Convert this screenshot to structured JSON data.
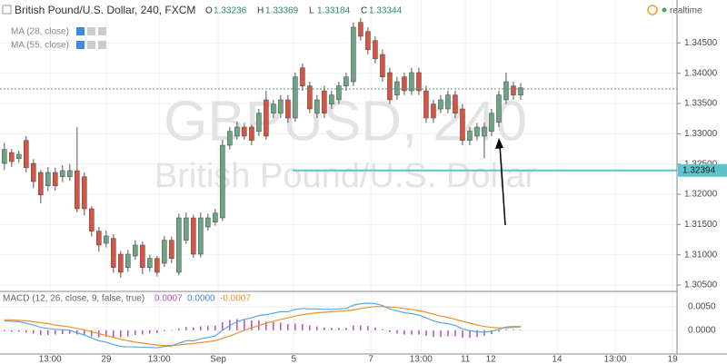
{
  "chart_data": [
    {
      "type": "candlestick",
      "title": "British Pound/U.S. Dollar, 240, FXCM",
      "ohlc_legend": [
        {
          "label": "O",
          "value": 1.33236
        },
        {
          "label": "H",
          "value": 1.33369
        },
        {
          "label": "L",
          "value": 1.33184
        },
        {
          "label": "C",
          "value": 1.33344
        }
      ],
      "indicators": [
        "MA (28, close)",
        "MA (55, close)"
      ],
      "status": "realtime",
      "watermark": [
        "GBPUSD, 240",
        "British Pound/U.S. Dollar"
      ],
      "up_color": "#6ba583",
      "down_color": "#d75442",
      "open": [
        1.3251,
        1.3269,
        1.3259,
        1.3289,
        1.3251,
        1.3236,
        1.3214,
        1.3236,
        1.3229,
        1.3229,
        1.3239,
        1.3229,
        1.3176,
        1.3139,
        1.3119,
        1.3127,
        1.3101,
        1.3079,
        1.3098,
        1.3116,
        1.3079,
        1.3094,
        1.3086,
        1.3124,
        1.3071,
        1.3124,
        1.3161,
        1.3101,
        1.3146,
        1.3154,
        1.3161,
        1.3281,
        1.3296,
        1.3311,
        1.3311,
        1.3304,
        1.3356,
        1.3334,
        1.3334,
        1.3356,
        1.3326,
        1.3409,
        1.3379,
        1.3334,
        1.3371,
        1.3349,
        1.3356,
        1.3379,
        1.3386,
        1.3484,
        1.3469,
        1.3454,
        1.3431,
        1.3401,
        1.3364,
        1.3394,
        1.3371,
        1.3401,
        1.3371,
        1.3349,
        1.3341,
        1.3341,
        1.3364,
        1.3341,
        1.3289,
        1.3296,
        1.3296,
        1.3304,
        1.3319,
        1.3356,
        1.3379,
        1.3364
      ],
      "high": [
        1.3285,
        1.3275,
        1.3272,
        1.3296,
        1.3258,
        1.324,
        1.3245,
        1.3244,
        1.3248,
        1.325,
        1.3311,
        1.3236,
        1.318,
        1.3146,
        1.314,
        1.3134,
        1.3106,
        1.3108,
        1.3124,
        1.3122,
        1.31,
        1.3098,
        1.3131,
        1.313,
        1.3168,
        1.317,
        1.3166,
        1.317,
        1.3168,
        1.3176,
        1.329,
        1.3311,
        1.332,
        1.3318,
        1.3315,
        1.3341,
        1.3371,
        1.3356,
        1.3364,
        1.3364,
        1.3401,
        1.3416,
        1.3386,
        1.3364,
        1.3379,
        1.3371,
        1.3386,
        1.3401,
        1.3484,
        1.3491,
        1.3476,
        1.3461,
        1.3439,
        1.3409,
        1.3394,
        1.3401,
        1.3409,
        1.3409,
        1.3379,
        1.3356,
        1.3364,
        1.3371,
        1.3371,
        1.3349,
        1.3311,
        1.3318,
        1.3318,
        1.3341,
        1.3371,
        1.3401,
        1.3386,
        1.3384
      ],
      "low": [
        1.324,
        1.3245,
        1.3252,
        1.3236,
        1.321,
        1.3185,
        1.3205,
        1.3206,
        1.322,
        1.3222,
        1.317,
        1.3165,
        1.313,
        1.3105,
        1.3112,
        1.307,
        1.3062,
        1.3072,
        1.3092,
        1.3068,
        1.3072,
        1.3064,
        1.308,
        1.3086,
        1.3066,
        1.3118,
        1.3095,
        1.3096,
        1.314,
        1.3148,
        1.3156,
        1.3274,
        1.329,
        1.329,
        1.3281,
        1.3296,
        1.329,
        1.3326,
        1.3326,
        1.3318,
        1.332,
        1.3371,
        1.3334,
        1.3326,
        1.3326,
        1.3341,
        1.3349,
        1.3371,
        1.3379,
        1.3454,
        1.3431,
        1.3416,
        1.3386,
        1.3349,
        1.3356,
        1.3364,
        1.3364,
        1.3364,
        1.3318,
        1.3318,
        1.3334,
        1.3334,
        1.3326,
        1.3281,
        1.3281,
        1.3289,
        1.3259,
        1.3296,
        1.3311,
        1.3349,
        1.3356,
        1.3356
      ],
      "close": [
        1.3274,
        1.3254,
        1.3266,
        1.3244,
        1.3221,
        1.3199,
        1.3236,
        1.3214,
        1.3239,
        1.3239,
        1.3176,
        1.3176,
        1.3139,
        1.3116,
        1.3131,
        1.3079,
        1.3071,
        1.3101,
        1.3116,
        1.3079,
        1.3094,
        1.3071,
        1.3124,
        1.3094,
        1.3161,
        1.3161,
        1.3101,
        1.3161,
        1.3161,
        1.3169,
        1.3281,
        1.3304,
        1.3311,
        1.3296,
        1.3289,
        1.3334,
        1.3296,
        1.3349,
        1.3356,
        1.3326,
        1.3394,
        1.3379,
        1.3341,
        1.3356,
        1.3334,
        1.3364,
        1.3379,
        1.3394,
        1.3476,
        1.3461,
        1.3439,
        1.3424,
        1.3394,
        1.3356,
        1.3386,
        1.3371,
        1.3401,
        1.3371,
        1.3326,
        1.3326,
        1.3356,
        1.3364,
        1.3334,
        1.3289,
        1.3304,
        1.3311,
        1.3311,
        1.3334,
        1.3364,
        1.3386,
        1.3364,
        1.3376
      ],
      "hline": {
        "value": 1.32394,
        "color": "#5fc4c9"
      },
      "price_line": {
        "value": 1.3374,
        "color": "#4a9a86"
      },
      "xlim": [
        -0.6,
        92.5
      ],
      "ylim": [
        1.3041,
        1.3521
      ],
      "yticks": [
        {
          "value": 1.305,
          "label": "1.30500"
        },
        {
          "value": 1.31,
          "label": "1.31000"
        },
        {
          "value": 1.315,
          "label": "1.31500"
        },
        {
          "value": 1.32,
          "label": "1.32000"
        },
        {
          "value": 1.325,
          "label": "1.32500"
        },
        {
          "value": 1.33,
          "label": "1.33000"
        },
        {
          "value": 1.335,
          "label": "1.33500"
        },
        {
          "value": 1.34,
          "label": "1.34000"
        },
        {
          "value": 1.345,
          "label": "1.34500"
        }
      ]
    },
    {
      "type": "macd",
      "title": "MACD (12, 26, close, 9, false, true)",
      "header_values": [
        {
          "value": 0.0007,
          "label": "0.0007",
          "color": "#b44fb4"
        },
        {
          "value": 0,
          "label": "0.0000",
          "color": "#3d8bd9"
        },
        {
          "value": -0.0007,
          "label": "-0.0007",
          "color": "#f0902e"
        }
      ],
      "macd": {
        "color": "#5aa7e0",
        "values": [
          0.002,
          0.0019,
          0.0018,
          0.0015,
          0.0011,
          0.0006,
          0.0004,
          0.0002,
          0.0001,
          0,
          -0.0005,
          -0.001,
          -0.0016,
          -0.0022,
          -0.0025,
          -0.003,
          -0.0034,
          -0.0035,
          -0.0035,
          -0.0036,
          -0.0036,
          -0.0037,
          -0.0034,
          -0.0033,
          -0.0027,
          -0.0022,
          -0.0022,
          -0.0018,
          -0.0015,
          -0.0012,
          0,
          0.001,
          0.0018,
          0.0023,
          0.0026,
          0.0031,
          0.0033,
          0.0036,
          0.0039,
          0.0039,
          0.0044,
          0.0046,
          0.0045,
          0.0045,
          0.0044,
          0.0044,
          0.0045,
          0.0046,
          0.0053,
          0.0056,
          0.0057,
          0.0056,
          0.0052,
          0.0045,
          0.0041,
          0.0037,
          0.0035,
          0.0032,
          0.0026,
          0.002,
          0.0016,
          0.0014,
          0.001,
          0.0003,
          -0.0001,
          -0.0003,
          -0.0004,
          -0.0002,
          0.0002,
          0.0007,
          0.0008,
          0.0008
        ]
      },
      "signal": {
        "color": "#f0902e",
        "values": [
          0.0022,
          0.0022,
          0.0021,
          0.002,
          0.0018,
          0.0016,
          0.0014,
          0.0011,
          0.0009,
          0.0007,
          0.0004,
          0.0001,
          -0.0003,
          -0.0007,
          -0.0011,
          -0.0015,
          -0.0019,
          -0.0022,
          -0.0025,
          -0.0027,
          -0.0029,
          -0.0031,
          -0.0032,
          -0.0032,
          -0.0031,
          -0.0029,
          -0.0028,
          -0.0026,
          -0.0024,
          -0.0022,
          -0.0017,
          -0.0012,
          -0.0006,
          0,
          0.0005,
          0.001,
          0.0015,
          0.0019,
          0.0023,
          0.0026,
          0.003,
          0.0033,
          0.0035,
          0.0037,
          0.0038,
          0.0039,
          0.004,
          0.0041,
          0.0043,
          0.0046,
          0.0048,
          0.005,
          0.005,
          0.0049,
          0.0048,
          0.0046,
          0.0044,
          0.0041,
          0.0038,
          0.0034,
          0.003,
          0.0027,
          0.0023,
          0.0019,
          0.0015,
          0.0011,
          0.0008,
          0.0006,
          0.0005,
          0.0005,
          0.0006,
          0.0007
        ]
      },
      "histogram": {
        "color": "#b44fb4",
        "values": [
          -0.0002,
          -0.0003,
          -0.0003,
          -0.0005,
          -0.0007,
          -0.001,
          -0.001,
          -0.0009,
          -0.0008,
          -0.0007,
          -0.0009,
          -0.0011,
          -0.0013,
          -0.0015,
          -0.0014,
          -0.0015,
          -0.0015,
          -0.0013,
          -0.001,
          -0.0009,
          -0.0007,
          -0.0006,
          -0.0002,
          -0.0001,
          0.0004,
          0.0007,
          0.0006,
          0.0008,
          0.0009,
          0.001,
          0.0017,
          0.0022,
          0.0024,
          0.0023,
          0.0021,
          0.0021,
          0.0018,
          0.0017,
          0.0016,
          0.0013,
          0.0014,
          0.0013,
          0.001,
          0.0008,
          0.0006,
          0.0005,
          0.0005,
          0.0005,
          0.001,
          0.001,
          0.0009,
          0.0006,
          0.0002,
          -0.0004,
          -0.0007,
          -0.0009,
          -0.0009,
          -0.0009,
          -0.0012,
          -0.0014,
          -0.0014,
          -0.0013,
          -0.0013,
          -0.0016,
          -0.0016,
          -0.0014,
          -0.0012,
          -0.0008,
          -0.0003,
          0.0002,
          0.0002,
          0.0001
        ]
      },
      "xlim": [
        -0.6,
        92.5
      ],
      "xticks": [
        {
          "value": 6.3,
          "label": "13:00"
        },
        {
          "value": 14,
          "label": "29"
        },
        {
          "value": 21.3,
          "label": "13:00"
        },
        {
          "value": 29.4,
          "label": "Sep"
        },
        {
          "value": 39.8,
          "label": "5"
        },
        {
          "value": 50.4,
          "label": "7"
        },
        {
          "value": 57.3,
          "label": "13:00"
        },
        {
          "value": 63.4,
          "label": "11"
        },
        {
          "value": 66.9,
          "label": "12"
        },
        {
          "value": 76,
          "label": "14"
        },
        {
          "value": 84,
          "label": "13:00"
        },
        {
          "value": 91.9,
          "label": "19"
        }
      ],
      "ylim": [
        -0.005,
        0.008
      ],
      "yticks": [
        {
          "value": 0,
          "label": "0.0000"
        },
        {
          "value": 0.005,
          "label": "0.0050"
        }
      ]
    }
  ]
}
